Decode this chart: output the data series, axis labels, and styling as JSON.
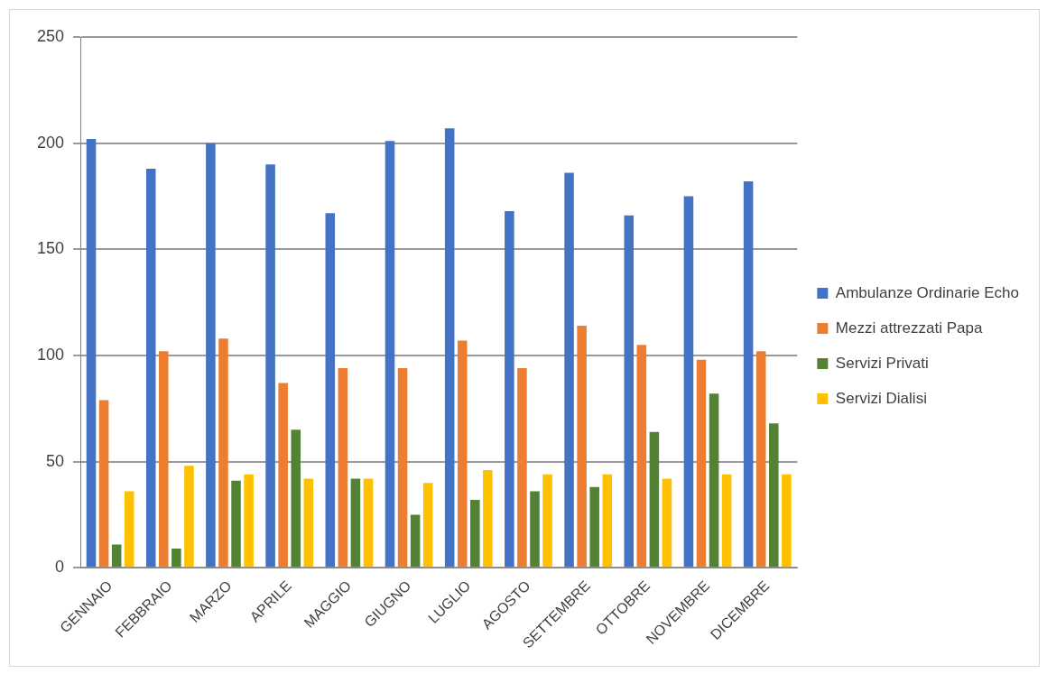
{
  "chart_data": {
    "type": "bar",
    "categories": [
      "GENNAIO",
      "FEBBRAIO",
      "MARZO",
      "APRILE",
      "MAGGIO",
      "GIUGNO",
      "LUGLIO",
      "AGOSTO",
      "SETTEMBRE",
      "OTTOBRE",
      "NOVEMBRE",
      "DICEMBRE"
    ],
    "series": [
      {
        "name": "Ambulanze Ordinarie Echo",
        "color": "#4472c4",
        "values": [
          202,
          188,
          200,
          190,
          167,
          201,
          207,
          168,
          186,
          166,
          175,
          182
        ]
      },
      {
        "name": "Mezzi attrezzati Papa",
        "color": "#ed7d31",
        "values": [
          79,
          102,
          108,
          87,
          94,
          94,
          107,
          94,
          114,
          105,
          98,
          102
        ]
      },
      {
        "name": "Servizi Privati",
        "color": "#548235",
        "values": [
          11,
          9,
          41,
          65,
          42,
          25,
          32,
          36,
          38,
          64,
          82,
          68
        ]
      },
      {
        "name": "Servizi Dialisi",
        "color": "#ffc000",
        "values": [
          36,
          48,
          44,
          42,
          42,
          40,
          46,
          44,
          44,
          42,
          44,
          44
        ]
      }
    ],
    "ylim": [
      0,
      250
    ],
    "yticks": [
      0,
      50,
      100,
      150,
      200,
      250
    ],
    "grid": "y",
    "legend": "right"
  }
}
